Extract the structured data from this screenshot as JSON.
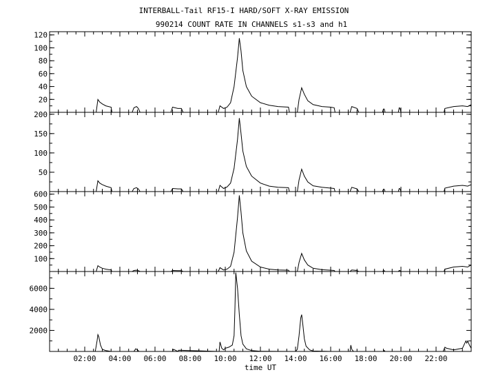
{
  "title": "INTERBALL-Tail RF15-I HARD/SOFT X-RAY EMISSION",
  "subtitle": "990214  COUNT RATE IN CHANNELS s1-s3 and h1",
  "chart_data": {
    "type": "line",
    "title": "INTERBALL-Tail RF15-I HARD/SOFT X-RAY EMISSION",
    "subtitle": "990214  COUNT RATE IN CHANNELS s1-s3 and h1",
    "xlabel": "time UT",
    "x_unit": "hours UT",
    "xlim": [
      0.0,
      24.0
    ],
    "x_ticks": [
      2,
      4,
      6,
      8,
      10,
      12,
      14,
      16,
      18,
      20,
      22
    ],
    "x_tick_labels": [
      "02:00",
      "04:00",
      "06:00",
      "08:00",
      "10:00",
      "12:00",
      "14:00",
      "16:00",
      "18:00",
      "20:00",
      "22:00"
    ],
    "panels": [
      {
        "ylim": [
          0,
          125
        ],
        "y_ticks": [
          20,
          40,
          60,
          80,
          100,
          120
        ],
        "y_tick_labels": [
          "20",
          "40",
          "60",
          "80",
          "100",
          "120"
        ],
        "series": [
          {
            "x": [
              0,
              2.65,
              2.75,
              2.85,
              3.0,
              3.2,
              3.5,
              3.55,
              4.7,
              4.8,
              4.95,
              5.05,
              5.15,
              6.9,
              7.0,
              7.3,
              7.5,
              7.6,
              9.6,
              9.7,
              9.9,
              10.1,
              10.3,
              10.5,
              10.7,
              10.8,
              10.9,
              11.0,
              11.2,
              11.5,
              12.0,
              12.5,
              13.0,
              13.6,
              13.65,
              14.1,
              14.2,
              14.35,
              14.5,
              14.7,
              15.0,
              15.5,
              16.0,
              16.2,
              16.25,
              17.1,
              17.2,
              17.5,
              17.6,
              18.95,
              19.0,
              19.05,
              19.1,
              19.85,
              19.9,
              19.95,
              20.0,
              22.45,
              22.5,
              23.0,
              23.5,
              23.8,
              24.0
            ],
            "y": [
              0,
              0,
              20,
              16,
              13,
              10,
              8,
              0,
              0,
              7,
              9,
              6,
              0,
              0,
              8,
              6,
              6,
              0,
              0,
              10,
              6,
              8,
              15,
              40,
              85,
              115,
              95,
              65,
              40,
              25,
              15,
              11,
              9,
              8,
              0,
              0,
              20,
              38,
              28,
              18,
              12,
              9,
              8,
              7,
              0,
              0,
              9,
              6,
              0,
              0,
              5,
              5,
              0,
              0,
              7,
              6,
              0,
              0,
              6,
              9,
              10,
              9,
              12
            ]
          }
        ]
      },
      {
        "ylim": [
          0,
          205
        ],
        "y_ticks": [
          50,
          100,
          150,
          200
        ],
        "y_tick_labels": [
          "50",
          "100",
          "150",
          "200"
        ],
        "series": [
          {
            "x": [
              0,
              2.65,
              2.75,
              2.85,
              3.0,
              3.2,
              3.5,
              3.55,
              4.7,
              4.8,
              4.95,
              5.05,
              5.15,
              6.9,
              7.0,
              7.3,
              7.5,
              7.6,
              9.6,
              9.7,
              9.9,
              10.1,
              10.3,
              10.5,
              10.7,
              10.8,
              10.9,
              11.0,
              11.2,
              11.5,
              12.0,
              12.5,
              13.0,
              13.6,
              13.65,
              14.1,
              14.2,
              14.35,
              14.5,
              14.7,
              15.0,
              15.5,
              16.0,
              16.2,
              16.25,
              17.1,
              17.2,
              17.5,
              17.6,
              18.95,
              19.0,
              19.05,
              19.1,
              19.85,
              19.9,
              19.95,
              20.0,
              22.45,
              22.5,
              23.0,
              23.5,
              23.8,
              24.0
            ],
            "y": [
              0,
              0,
              28,
              22,
              18,
              14,
              10,
              0,
              0,
              8,
              10,
              7,
              0,
              0,
              8,
              7,
              7,
              0,
              0,
              16,
              8,
              12,
              22,
              60,
              135,
              190,
              150,
              105,
              65,
              40,
              22,
              14,
              11,
              10,
              0,
              0,
              30,
              58,
              40,
              25,
              15,
              11,
              9,
              8,
              0,
              0,
              11,
              7,
              0,
              0,
              6,
              6,
              0,
              0,
              8,
              7,
              0,
              0,
              9,
              14,
              16,
              14,
              18
            ]
          }
        ]
      },
      {
        "ylim": [
          0,
          620
        ],
        "y_ticks": [
          100,
          200,
          300,
          400,
          500,
          600
        ],
        "y_tick_labels": [
          "100",
          "200",
          "300",
          "400",
          "500",
          "600"
        ],
        "series": [
          {
            "x": [
              0,
              2.65,
              2.75,
              2.85,
              3.0,
              3.2,
              3.5,
              3.55,
              4.7,
              4.8,
              4.95,
              5.05,
              5.15,
              6.9,
              7.0,
              7.3,
              7.5,
              7.6,
              9.6,
              9.7,
              9.9,
              10.1,
              10.3,
              10.5,
              10.7,
              10.8,
              10.9,
              11.0,
              11.2,
              11.5,
              12.0,
              12.5,
              13.0,
              13.6,
              13.65,
              14.1,
              14.2,
              14.35,
              14.5,
              14.7,
              15.0,
              15.5,
              16.0,
              16.2,
              16.25,
              17.1,
              17.2,
              17.5,
              17.6,
              18.95,
              19.0,
              19.05,
              19.1,
              19.85,
              19.9,
              19.95,
              20.0,
              22.45,
              22.5,
              23.0,
              23.5,
              23.8,
              24.0
            ],
            "y": [
              0,
              0,
              45,
              35,
              25,
              18,
              12,
              0,
              0,
              8,
              10,
              7,
              0,
              0,
              8,
              7,
              7,
              0,
              0,
              30,
              12,
              18,
              40,
              150,
              420,
              590,
              460,
              300,
              160,
              80,
              35,
              18,
              12,
              10,
              0,
              0,
              70,
              140,
              90,
              50,
              25,
              14,
              10,
              8,
              0,
              0,
              12,
              8,
              0,
              0,
              7,
              7,
              0,
              0,
              8,
              7,
              0,
              0,
              18,
              35,
              40,
              35,
              50
            ]
          }
        ]
      },
      {
        "ylim": [
          0,
          7600
        ],
        "y_ticks": [
          2000,
          4000,
          6000
        ],
        "y_tick_labels": [
          "2000",
          "4000",
          "6000"
        ],
        "series": [
          {
            "x": [
              0,
              2.6,
              2.7,
              2.75,
              2.8,
              2.9,
              3.0,
              3.2,
              3.5,
              4.8,
              4.9,
              5.0,
              5.1,
              7.0,
              7.05,
              7.3,
              7.35,
              9.6,
              9.65,
              9.7,
              9.8,
              9.9,
              10.0,
              10.2,
              10.4,
              10.5,
              10.55,
              10.6,
              10.7,
              10.8,
              10.9,
              11.0,
              11.2,
              11.5,
              12.0,
              14.0,
              14.1,
              14.2,
              14.3,
              14.35,
              14.4,
              14.5,
              14.6,
              14.8,
              15.0,
              16.0,
              17.1,
              17.15,
              17.2,
              17.3,
              19.0,
              19.05,
              19.1,
              22.4,
              22.5,
              22.6,
              23.0,
              23.5,
              23.7,
              23.75,
              23.8,
              23.9,
              24.0
            ],
            "y": [
              0,
              0,
              1000,
              1600,
              1400,
              600,
              200,
              80,
              0,
              0,
              250,
              150,
              0,
              0,
              200,
              0,
              120,
              0,
              0,
              900,
              300,
              150,
              300,
              400,
              600,
              1500,
              4000,
              7500,
              6000,
              3500,
              1500,
              700,
              250,
              80,
              20,
              0,
              200,
              1500,
              3200,
              3500,
              2800,
              1200,
              500,
              150,
              40,
              0,
              0,
              600,
              200,
              0,
              0,
              100,
              0,
              0,
              400,
              300,
              150,
              300,
              1000,
              800,
              1000,
              600,
              300
            ]
          }
        ]
      }
    ]
  }
}
